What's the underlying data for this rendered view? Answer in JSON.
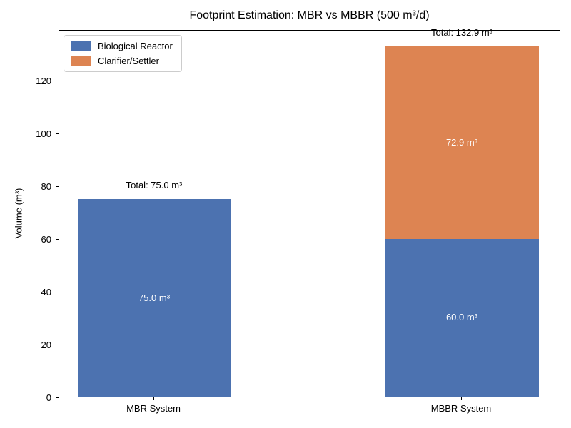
{
  "chart_data": {
    "type": "bar",
    "stacked": true,
    "title": "Footprint Estimation: MBR vs MBBR (500 m³/d)",
    "xlabel": "",
    "ylabel": "Volume (m³)",
    "categories": [
      "MBR System",
      "MBBR System"
    ],
    "series": [
      {
        "name": "Biological Reactor",
        "color": "#4C72B0",
        "values": [
          75.0,
          60.0
        ]
      },
      {
        "name": "Clarifier/Settler",
        "color": "#DD8452",
        "values": [
          0.0,
          72.9
        ]
      }
    ],
    "segment_labels": [
      [
        "75.0 m³",
        "60.0 m³"
      ],
      [
        null,
        "72.9 m³"
      ]
    ],
    "totals": [
      75.0,
      132.9
    ],
    "total_labels": [
      "Total: 75.0 m³",
      "Total: 132.9 m³"
    ],
    "ylim": [
      0,
      139.5
    ],
    "yticks": [
      0,
      20,
      40,
      60,
      80,
      100,
      120
    ],
    "legend_position": "upper left",
    "grid": false,
    "background": "#ffffff",
    "text_color": "#000000",
    "bar_label_color": "#ffffff"
  }
}
